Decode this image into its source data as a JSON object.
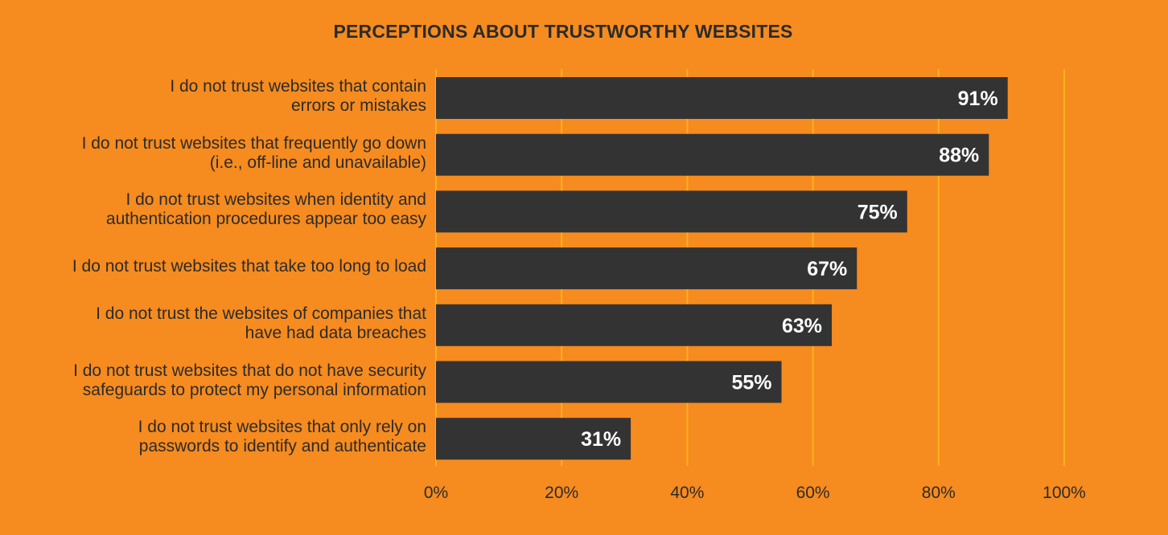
{
  "chart_data": {
    "type": "bar",
    "orientation": "horizontal",
    "title": "PERCEPTIONS ABOUT TRUSTWORTHY WEBSITES",
    "categories": [
      [
        "I do not trust websites that contain",
        "errors or mistakes"
      ],
      [
        "I do not trust websites that frequently go down",
        "(i.e., off-line and unavailable)"
      ],
      [
        "I do not trust websites when identity and",
        "authentication procedures appear too easy"
      ],
      [
        "I do not trust websites that take too long to load"
      ],
      [
        "I do not trust the websites of companies that",
        "have had data breaches"
      ],
      [
        "I do not trust websites that do not have security",
        "safeguards to protect my personal information"
      ],
      [
        "I do not trust websites that only rely on",
        "passwords to identify and authenticate"
      ]
    ],
    "values": [
      91,
      88,
      75,
      67,
      63,
      55,
      31
    ],
    "value_labels": [
      "91%",
      "88%",
      "75%",
      "67%",
      "63%",
      "55%",
      "31%"
    ],
    "xlim": [
      0,
      100
    ],
    "xticks": [
      0,
      20,
      40,
      60,
      80,
      100
    ],
    "xtick_labels": [
      "0%",
      "20%",
      "40%",
      "60%",
      "80%",
      "100%"
    ],
    "xlabel": "",
    "ylabel": "",
    "grid": true,
    "colors": {
      "background": "#F68B1F",
      "bar": "#333333",
      "grid": "#F9B21C",
      "bar_label": "#FFFFFF"
    }
  }
}
